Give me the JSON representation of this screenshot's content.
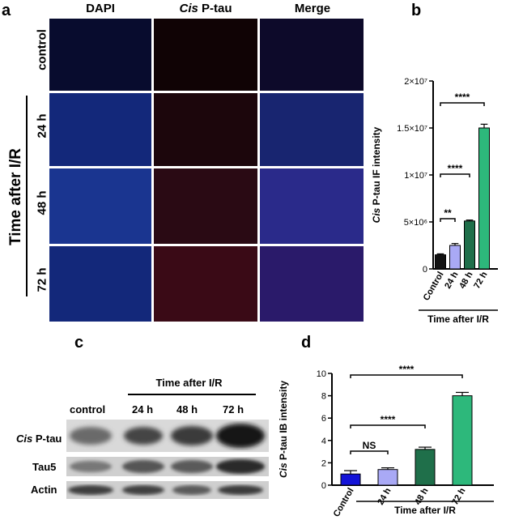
{
  "panel_letters": {
    "a": "a",
    "b": "b",
    "c": "c",
    "d": "d"
  },
  "panel_a": {
    "columns": [
      "DAPI",
      "Cis",
      "P-tau",
      "Merge"
    ],
    "rows": [
      "control",
      "24 h",
      "48 h",
      "72 h"
    ],
    "group_label": "Time after I/R"
  },
  "panel_c": {
    "header": "Time after I/R",
    "lanes": [
      "control",
      "24 h",
      "48 h",
      "72 h"
    ],
    "rows": [
      {
        "name_italic": "Cis",
        "name": "P-tau"
      },
      {
        "name_italic": "",
        "name": "Tau5"
      },
      {
        "name_italic": "",
        "name": "Actin"
      }
    ]
  },
  "chart_data": [
    {
      "type": "bar",
      "panel": "b",
      "categories": [
        "Control",
        "24 h",
        "48 h",
        "72 h"
      ],
      "values": [
        1500000,
        2500000,
        5100000,
        15000000
      ],
      "errors": [
        100000,
        200000,
        100000,
        400000
      ],
      "colors": [
        "#111111",
        "#a9a9f5",
        "#1f6f4a",
        "#2db87b"
      ],
      "ylabel_italic": "Cis",
      "ylabel": "P-tau IF intensity",
      "xlabel": "Time after I/R",
      "ylim": [
        0,
        20000000
      ],
      "yticks": [
        "0",
        "5×10⁶",
        "1×10⁷",
        "1.5×10⁷",
        "2×10⁷"
      ],
      "significance": [
        {
          "from": 0,
          "to": 1,
          "label": "**"
        },
        {
          "from": 0,
          "to": 2,
          "label": "****"
        },
        {
          "from": 0,
          "to": 3,
          "label": "****"
        }
      ]
    },
    {
      "type": "bar",
      "panel": "d",
      "categories": [
        "Control",
        "24 h",
        "48 h",
        "72 h"
      ],
      "values": [
        1.0,
        1.4,
        3.2,
        8.0
      ],
      "errors": [
        0.3,
        0.15,
        0.2,
        0.3
      ],
      "colors": [
        "#1414d8",
        "#a9a9f5",
        "#1f6f4a",
        "#2db87b"
      ],
      "ylabel_italic": "Cis",
      "ylabel": "P-tau IB intensity",
      "xlabel": "Time after I/R",
      "ylim": [
        0,
        10
      ],
      "yticks": [
        "0",
        "2",
        "4",
        "6",
        "8",
        "10"
      ],
      "significance": [
        {
          "from": 0,
          "to": 1,
          "label": "NS"
        },
        {
          "from": 0,
          "to": 2,
          "label": "****"
        },
        {
          "from": 0,
          "to": 3,
          "label": "****"
        }
      ]
    }
  ]
}
